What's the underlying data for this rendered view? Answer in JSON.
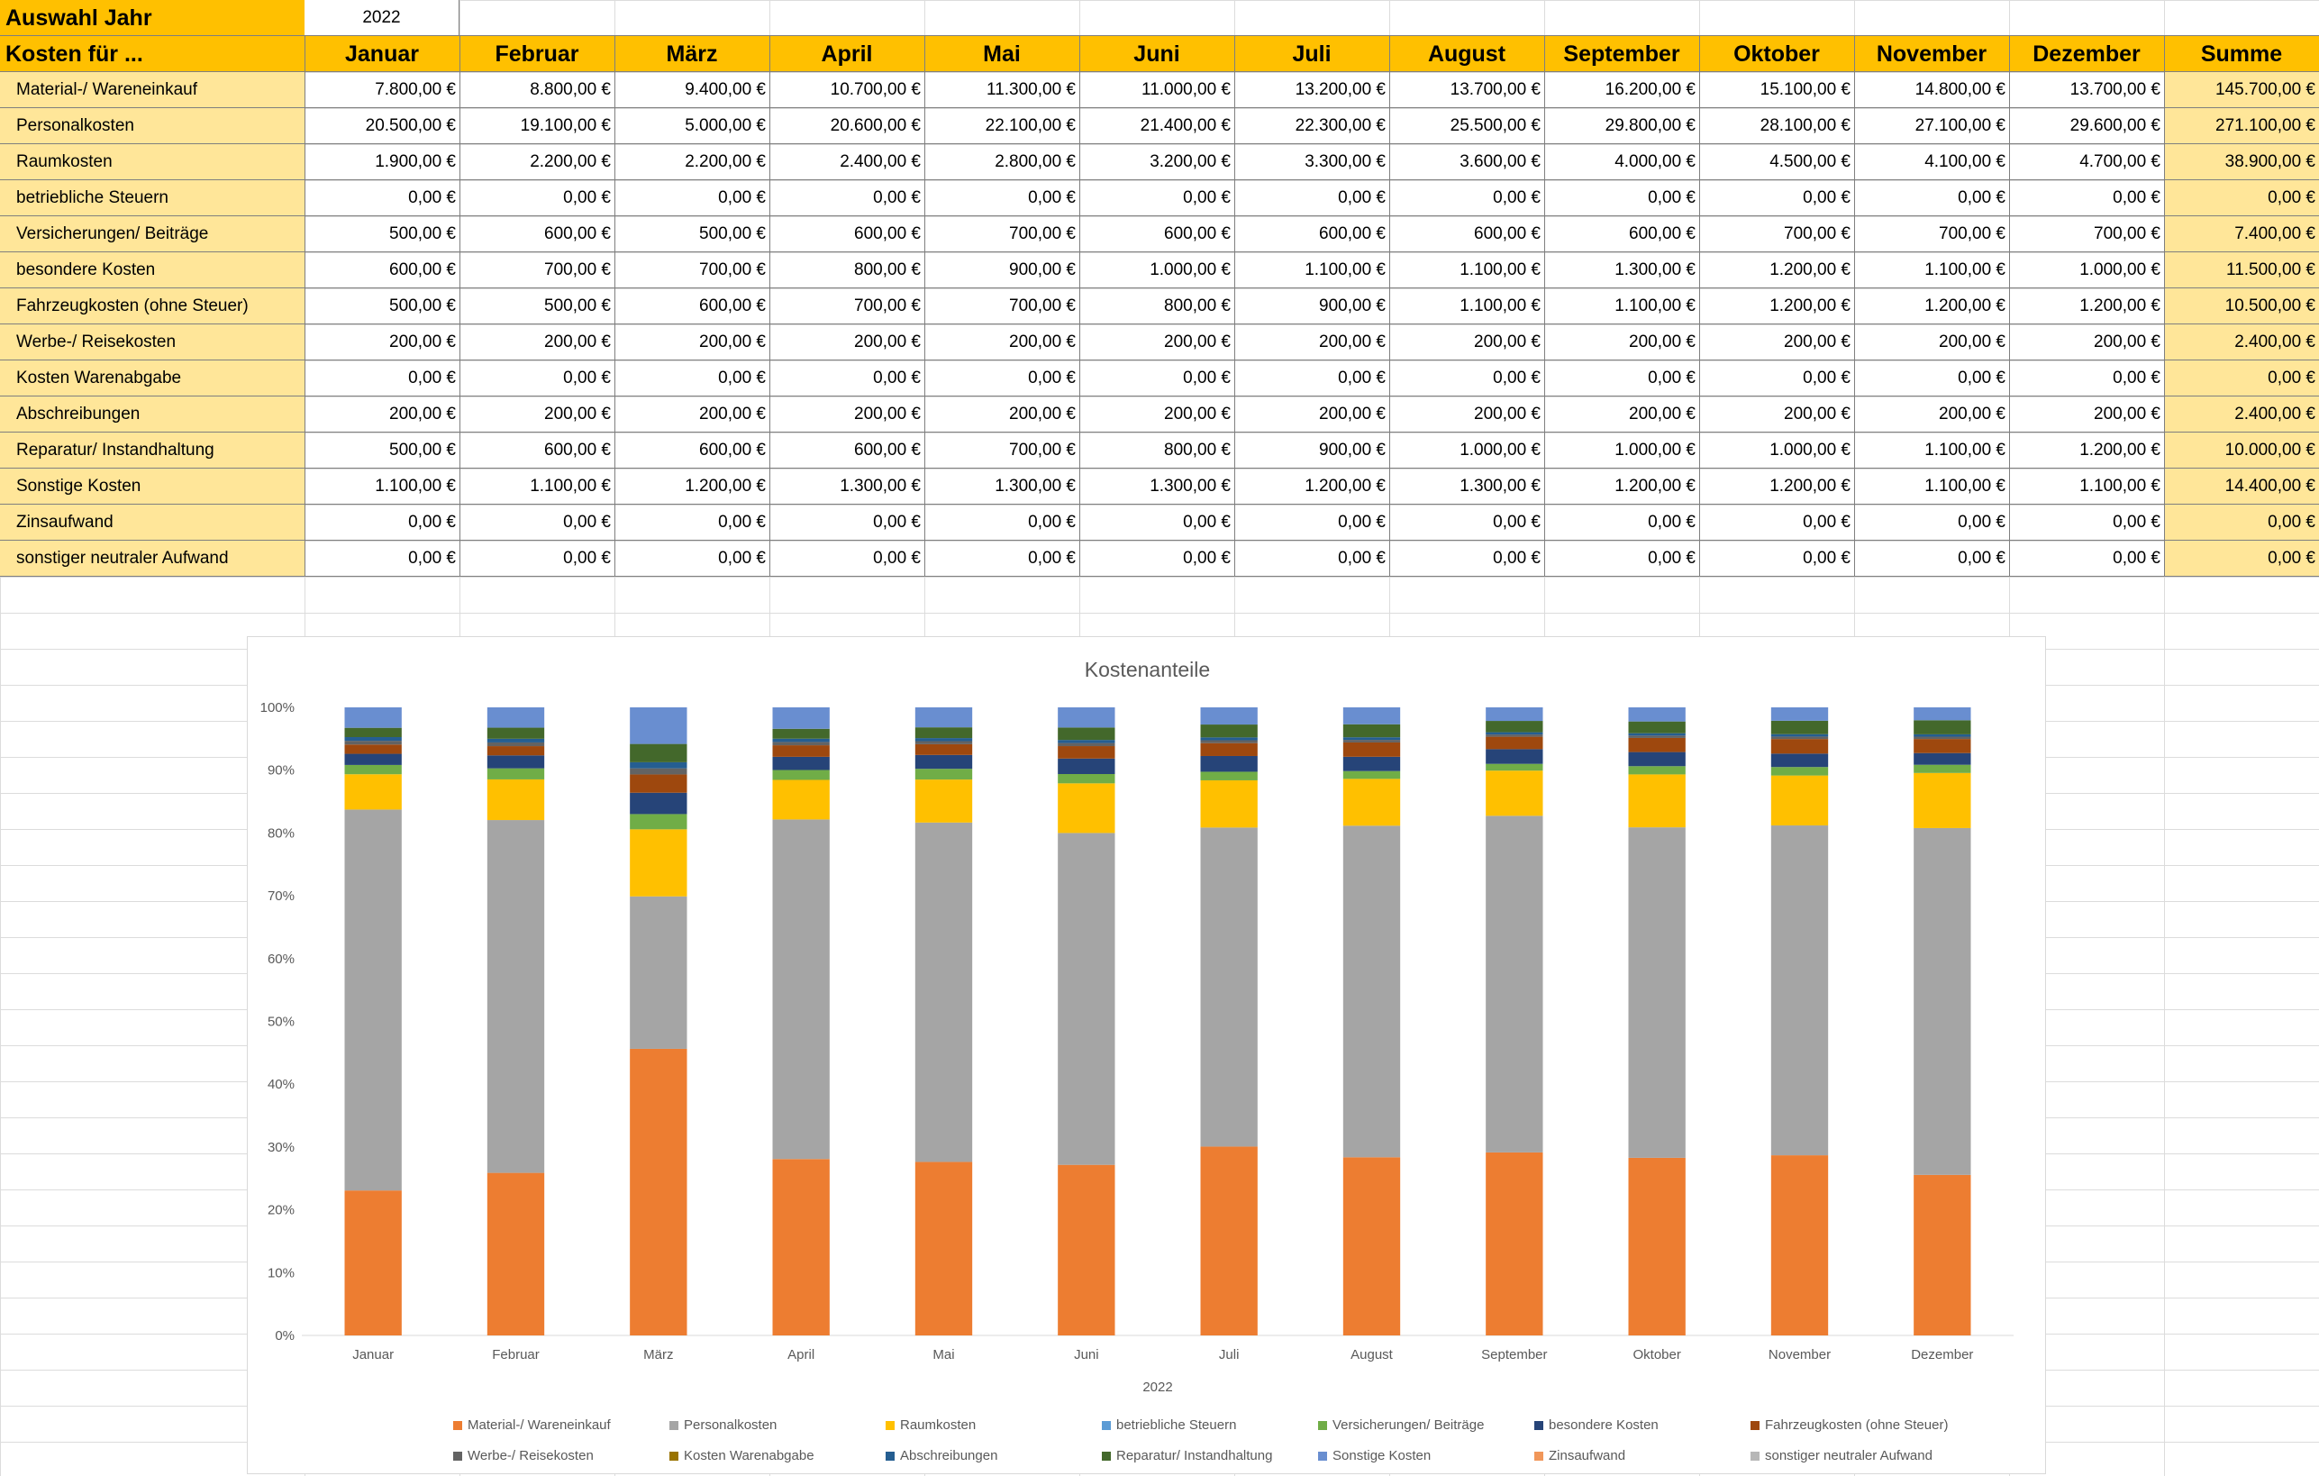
{
  "year_selector": {
    "label": "Auswahl Jahr",
    "value": "2022"
  },
  "table": {
    "corner_label": "Kosten für ...",
    "months": [
      "Januar",
      "Februar",
      "März",
      "April",
      "Mai",
      "Juni",
      "Juli",
      "August",
      "September",
      "Oktober",
      "November",
      "Dezember"
    ],
    "sum_label": "Summe",
    "rows": [
      {
        "label": "Material-/ Wareneinkauf",
        "values": [
          "7.800,00 €",
          "8.800,00 €",
          "9.400,00 €",
          "10.700,00 €",
          "11.300,00 €",
          "11.000,00 €",
          "13.200,00 €",
          "13.700,00 €",
          "16.200,00 €",
          "15.100,00 €",
          "14.800,00 €",
          "13.700,00 €"
        ],
        "sum": "145.700,00 €"
      },
      {
        "label": "Personalkosten",
        "values": [
          "20.500,00 €",
          "19.100,00 €",
          "5.000,00 €",
          "20.600,00 €",
          "22.100,00 €",
          "21.400,00 €",
          "22.300,00 €",
          "25.500,00 €",
          "29.800,00 €",
          "28.100,00 €",
          "27.100,00 €",
          "29.600,00 €"
        ],
        "sum": "271.100,00 €"
      },
      {
        "label": "Raumkosten",
        "values": [
          "1.900,00 €",
          "2.200,00 €",
          "2.200,00 €",
          "2.400,00 €",
          "2.800,00 €",
          "3.200,00 €",
          "3.300,00 €",
          "3.600,00 €",
          "4.000,00 €",
          "4.500,00 €",
          "4.100,00 €",
          "4.700,00 €"
        ],
        "sum": "38.900,00 €"
      },
      {
        "label": "betriebliche Steuern",
        "values": [
          "0,00 €",
          "0,00 €",
          "0,00 €",
          "0,00 €",
          "0,00 €",
          "0,00 €",
          "0,00 €",
          "0,00 €",
          "0,00 €",
          "0,00 €",
          "0,00 €",
          "0,00 €"
        ],
        "sum": "0,00 €"
      },
      {
        "label": "Versicherungen/ Beiträge",
        "values": [
          "500,00 €",
          "600,00 €",
          "500,00 €",
          "600,00 €",
          "700,00 €",
          "600,00 €",
          "600,00 €",
          "600,00 €",
          "600,00 €",
          "700,00 €",
          "700,00 €",
          "700,00 €"
        ],
        "sum": "7.400,00 €"
      },
      {
        "label": "besondere Kosten",
        "values": [
          "600,00 €",
          "700,00 €",
          "700,00 €",
          "800,00 €",
          "900,00 €",
          "1.000,00 €",
          "1.100,00 €",
          "1.100,00 €",
          "1.300,00 €",
          "1.200,00 €",
          "1.100,00 €",
          "1.000,00 €"
        ],
        "sum": "11.500,00 €"
      },
      {
        "label": "Fahrzeugkosten (ohne Steuer)",
        "values": [
          "500,00 €",
          "500,00 €",
          "600,00 €",
          "700,00 €",
          "700,00 €",
          "800,00 €",
          "900,00 €",
          "1.100,00 €",
          "1.100,00 €",
          "1.200,00 €",
          "1.200,00 €",
          "1.200,00 €"
        ],
        "sum": "10.500,00 €"
      },
      {
        "label": "Werbe-/ Reisekosten",
        "values": [
          "200,00 €",
          "200,00 €",
          "200,00 €",
          "200,00 €",
          "200,00 €",
          "200,00 €",
          "200,00 €",
          "200,00 €",
          "200,00 €",
          "200,00 €",
          "200,00 €",
          "200,00 €"
        ],
        "sum": "2.400,00 €"
      },
      {
        "label": "Kosten Warenabgabe",
        "values": [
          "0,00 €",
          "0,00 €",
          "0,00 €",
          "0,00 €",
          "0,00 €",
          "0,00 €",
          "0,00 €",
          "0,00 €",
          "0,00 €",
          "0,00 €",
          "0,00 €",
          "0,00 €"
        ],
        "sum": "0,00 €"
      },
      {
        "label": "Abschreibungen",
        "values": [
          "200,00 €",
          "200,00 €",
          "200,00 €",
          "200,00 €",
          "200,00 €",
          "200,00 €",
          "200,00 €",
          "200,00 €",
          "200,00 €",
          "200,00 €",
          "200,00 €",
          "200,00 €"
        ],
        "sum": "2.400,00 €"
      },
      {
        "label": "Reparatur/ Instandhaltung",
        "values": [
          "500,00 €",
          "600,00 €",
          "600,00 €",
          "600,00 €",
          "700,00 €",
          "800,00 €",
          "900,00 €",
          "1.000,00 €",
          "1.000,00 €",
          "1.000,00 €",
          "1.100,00 €",
          "1.200,00 €"
        ],
        "sum": "10.000,00 €"
      },
      {
        "label": "Sonstige Kosten",
        "values": [
          "1.100,00 €",
          "1.100,00 €",
          "1.200,00 €",
          "1.300,00 €",
          "1.300,00 €",
          "1.300,00 €",
          "1.200,00 €",
          "1.300,00 €",
          "1.200,00 €",
          "1.200,00 €",
          "1.100,00 €",
          "1.100,00 €"
        ],
        "sum": "14.400,00 €"
      },
      {
        "label": "Zinsaufwand",
        "values": [
          "0,00 €",
          "0,00 €",
          "0,00 €",
          "0,00 €",
          "0,00 €",
          "0,00 €",
          "0,00 €",
          "0,00 €",
          "0,00 €",
          "0,00 €",
          "0,00 €",
          "0,00 €"
        ],
        "sum": "0,00 €"
      },
      {
        "label": "sonstiger neutraler Aufwand",
        "values": [
          "0,00 €",
          "0,00 €",
          "0,00 €",
          "0,00 €",
          "0,00 €",
          "0,00 €",
          "0,00 €",
          "0,00 €",
          "0,00 €",
          "0,00 €",
          "0,00 €",
          "0,00 €"
        ],
        "sum": "0,00 €"
      }
    ]
  },
  "colors": {
    "header": "#ffc000",
    "label_fill": "#ffe699",
    "series": [
      "#ed7d31",
      "#a5a5a5",
      "#ffc000",
      "#5b9bd5",
      "#70ad47",
      "#264478",
      "#9e480e",
      "#636363",
      "#997300",
      "#255e91",
      "#43682b",
      "#698ed0",
      "#f1975a",
      "#b7b7b7"
    ]
  },
  "chart_data": {
    "type": "bar",
    "stacked": "percent",
    "title": "Kostenanteile",
    "xlabel": "2022",
    "ylabel": "",
    "ylim": [
      0,
      1
    ],
    "yticks": [
      "0%",
      "10%",
      "20%",
      "30%",
      "40%",
      "50%",
      "60%",
      "70%",
      "80%",
      "90%",
      "100%"
    ],
    "legend_position": "bottom",
    "categories": [
      "Januar",
      "Februar",
      "März",
      "April",
      "Mai",
      "Juni",
      "Juli",
      "August",
      "September",
      "Oktober",
      "November",
      "Dezember"
    ],
    "series": [
      {
        "name": "Material-/ Wareneinkauf",
        "values": [
          7800,
          8800,
          9400,
          10700,
          11300,
          11000,
          13200,
          13700,
          16200,
          15100,
          14800,
          13700
        ]
      },
      {
        "name": "Personalkosten",
        "values": [
          20500,
          19100,
          5000,
          20600,
          22100,
          21400,
          22300,
          25500,
          29800,
          28100,
          27100,
          29600
        ]
      },
      {
        "name": "Raumkosten",
        "values": [
          1900,
          2200,
          2200,
          2400,
          2800,
          3200,
          3300,
          3600,
          4000,
          4500,
          4100,
          4700
        ]
      },
      {
        "name": "betriebliche Steuern",
        "values": [
          0,
          0,
          0,
          0,
          0,
          0,
          0,
          0,
          0,
          0,
          0,
          0
        ]
      },
      {
        "name": "Versicherungen/ Beiträge",
        "values": [
          500,
          600,
          500,
          600,
          700,
          600,
          600,
          600,
          600,
          700,
          700,
          700
        ]
      },
      {
        "name": "besondere Kosten",
        "values": [
          600,
          700,
          700,
          800,
          900,
          1000,
          1100,
          1100,
          1300,
          1200,
          1100,
          1000
        ]
      },
      {
        "name": "Fahrzeugkosten (ohne Steuer)",
        "values": [
          500,
          500,
          600,
          700,
          700,
          800,
          900,
          1100,
          1100,
          1200,
          1200,
          1200
        ]
      },
      {
        "name": "Werbe-/ Reisekosten",
        "values": [
          200,
          200,
          200,
          200,
          200,
          200,
          200,
          200,
          200,
          200,
          200,
          200
        ]
      },
      {
        "name": "Kosten Warenabgabe",
        "values": [
          0,
          0,
          0,
          0,
          0,
          0,
          0,
          0,
          0,
          0,
          0,
          0
        ]
      },
      {
        "name": "Abschreibungen",
        "values": [
          200,
          200,
          200,
          200,
          200,
          200,
          200,
          200,
          200,
          200,
          200,
          200
        ]
      },
      {
        "name": "Reparatur/ Instandhaltung",
        "values": [
          500,
          600,
          600,
          600,
          700,
          800,
          900,
          1000,
          1000,
          1000,
          1100,
          1200
        ]
      },
      {
        "name": "Sonstige Kosten",
        "values": [
          1100,
          1100,
          1200,
          1300,
          1300,
          1300,
          1200,
          1300,
          1200,
          1200,
          1100,
          1100
        ]
      },
      {
        "name": "Zinsaufwand",
        "values": [
          0,
          0,
          0,
          0,
          0,
          0,
          0,
          0,
          0,
          0,
          0,
          0
        ]
      },
      {
        "name": "sonstiger neutraler Aufwand",
        "values": [
          0,
          0,
          0,
          0,
          0,
          0,
          0,
          0,
          0,
          0,
          0,
          0
        ]
      }
    ]
  }
}
